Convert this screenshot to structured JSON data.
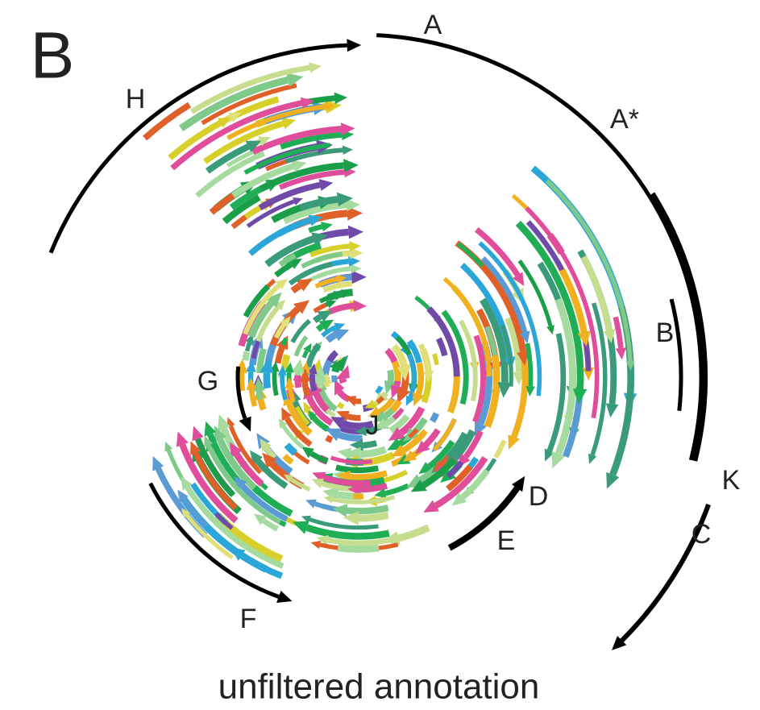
{
  "panel_label": "B",
  "region_labels": [
    "A",
    "A*",
    "H",
    "B",
    "G",
    "J",
    "K",
    "D",
    "E",
    "C",
    "F"
  ],
  "caption": "unfiltered annotation"
}
